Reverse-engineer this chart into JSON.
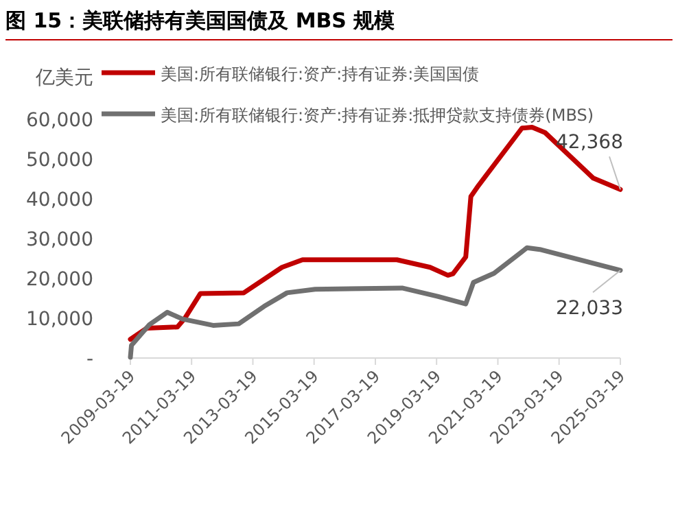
{
  "chart_data": {
    "type": "line",
    "title": "图 15：美联储持有美国国债及 MBS 规模",
    "ylabel": "亿美元",
    "ylim": [
      0,
      60000
    ],
    "yticks": [
      {
        "value": 0,
        "label": "-"
      },
      {
        "value": 10000,
        "label": "10,000"
      },
      {
        "value": 20000,
        "label": "20,000"
      },
      {
        "value": 30000,
        "label": "30,000"
      },
      {
        "value": 40000,
        "label": "40,000"
      },
      {
        "value": 50000,
        "label": "50,000"
      },
      {
        "value": 60000,
        "label": "60,000"
      }
    ],
    "xlim": [
      "2009-03-19",
      "2025-03-19"
    ],
    "xticks": [
      "2009-03-19",
      "2011-03-19",
      "2013-03-19",
      "2015-03-19",
      "2017-03-19",
      "2019-03-19",
      "2021-03-19",
      "2023-03-19",
      "2025-03-19"
    ],
    "legend": "top left",
    "grid": false,
    "marker": "none",
    "line_style": "solid",
    "series": [
      {
        "name": "美国:所有联储银行:资产:持有证券:美国国债",
        "color": "#c00000",
        "x": [
          "2009-03-19",
          "2009-10",
          "2010-10",
          "2011-01",
          "2011-07",
          "2012-12",
          "2014-03",
          "2014-11",
          "2017-12",
          "2019-01",
          "2019-08",
          "2019-10",
          "2020-03",
          "2020-05",
          "2020-08",
          "2022-01",
          "2022-05",
          "2022-10",
          "2024-05",
          "2025-03-19"
        ],
        "values": [
          4700,
          7500,
          7800,
          10100,
          16200,
          16400,
          22800,
          24700,
          24700,
          22800,
          20800,
          21200,
          25400,
          40600,
          43400,
          57800,
          58000,
          56700,
          45200,
          42368
        ]
      },
      {
        "name": "美国:所有联储银行:资产:持有证券:抵押贷款支持债券(MBS)",
        "color": "#707070",
        "x": [
          "2009-03-19",
          "2009-04",
          "2009-11",
          "2010-06",
          "2010-12",
          "2011-12",
          "2012-10",
          "2013-08",
          "2014-05",
          "2015-04",
          "2018-02",
          "2019-04",
          "2020-03",
          "2020-06",
          "2021-02",
          "2022-03",
          "2022-08",
          "2025-03-19"
        ],
        "values": [
          200,
          3200,
          8400,
          11500,
          9800,
          8200,
          8600,
          13000,
          16400,
          17300,
          17600,
          15500,
          13600,
          19000,
          21300,
          27700,
          27300,
          22033
        ]
      }
    ],
    "annotations": [
      {
        "text": "42,368",
        "x": "2025-03-19",
        "y": 42368
      },
      {
        "text": "22,033",
        "x": "2025-03-19",
        "y": 22033
      }
    ]
  }
}
